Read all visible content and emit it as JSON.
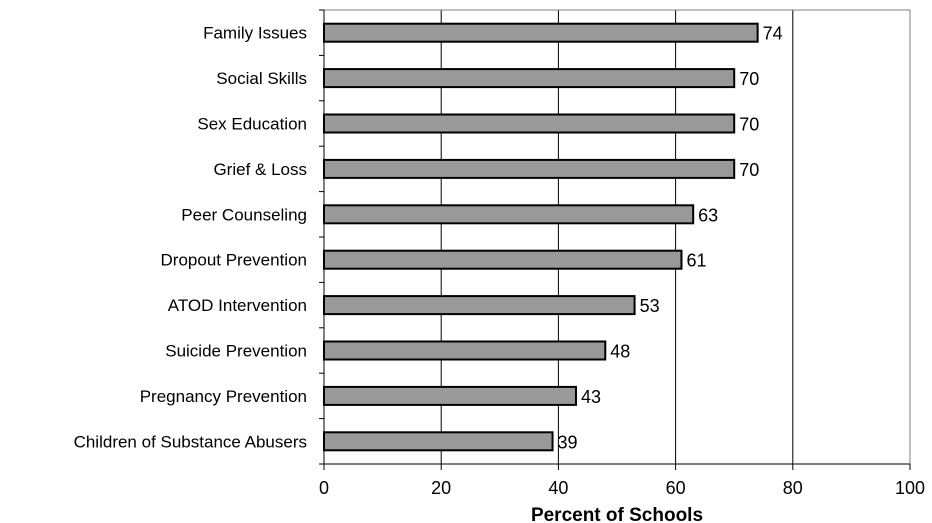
{
  "chart_data": {
    "type": "bar",
    "orientation": "horizontal",
    "categories": [
      "Family Issues",
      "Social Skills",
      "Sex Education",
      "Grief & Loss",
      "Peer Counseling",
      "Dropout Prevention",
      "ATOD Intervention",
      "Suicide Prevention",
      "Pregnancy Prevention",
      "Children of Substance Abusers"
    ],
    "values": [
      74,
      70,
      70,
      70,
      63,
      61,
      53,
      48,
      43,
      39
    ],
    "xlabel": "Percent of Schools",
    "ylabel": "",
    "title": "",
    "xlim": [
      0,
      100
    ],
    "xticks": [
      0,
      20,
      40,
      60,
      80,
      100
    ],
    "grid": "vertical gridlines",
    "legend": "none",
    "colors": {
      "bar_fill": "#999999",
      "bar_stroke": "#000000",
      "grid": "#000000",
      "plot_border": "#808080"
    }
  }
}
